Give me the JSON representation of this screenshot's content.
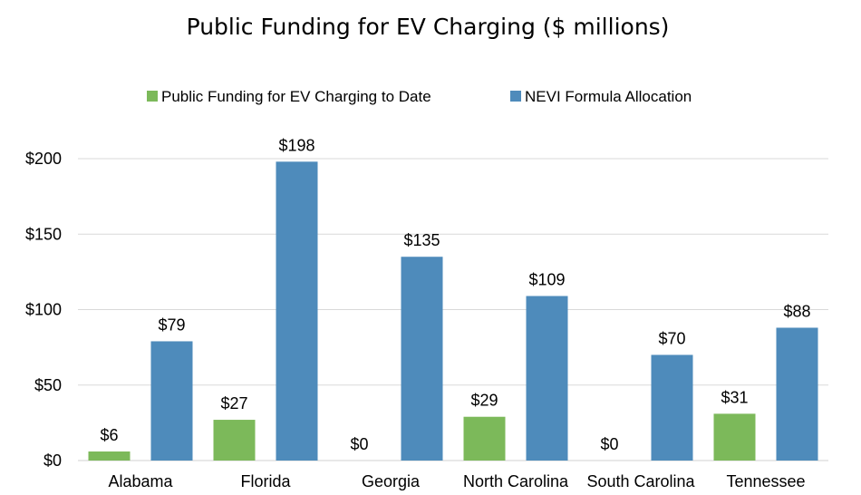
{
  "chart_data": {
    "type": "bar",
    "title": "Public Funding for EV Charging ($ millions)",
    "xlabel": "",
    "ylabel": "",
    "categories": [
      "Alabama",
      "Florida",
      "Georgia",
      "North Carolina",
      "South Carolina",
      "Tennessee"
    ],
    "series": [
      {
        "name": "Public Funding for EV Charging to Date",
        "color": "#7cb95a",
        "values": [
          6,
          27,
          0,
          29,
          0,
          31
        ],
        "labels": [
          "$6",
          "$27",
          "$0",
          "$29",
          "$0",
          "$31"
        ]
      },
      {
        "name": "NEVI Formula Allocation",
        "color": "#4e8bbb",
        "values": [
          79,
          198,
          135,
          109,
          70,
          88
        ],
        "labels": [
          "$79",
          "$198",
          "$135",
          "$109",
          "$70",
          "$88"
        ]
      }
    ],
    "ylim": [
      0,
      200
    ],
    "yticks": [
      0,
      50,
      100,
      150,
      200
    ],
    "ytick_labels": [
      "$0",
      "$50",
      "$100",
      "$150",
      "$200"
    ],
    "grid": true,
    "legend_position": "top-center"
  }
}
